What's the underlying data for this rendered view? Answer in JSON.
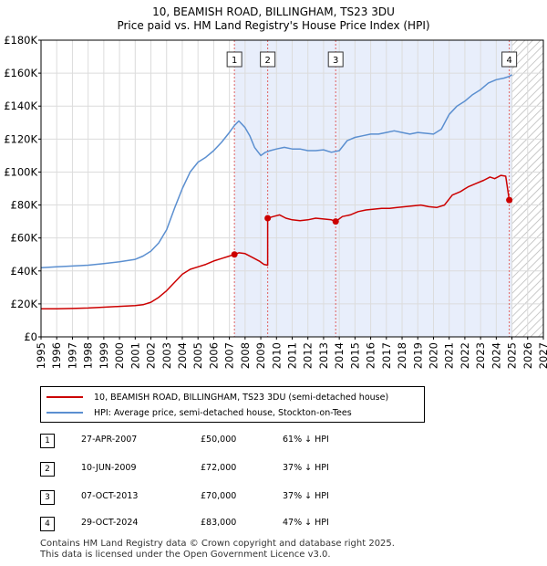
{
  "title_line1": "10, BEAMISH ROAD, BILLINGHAM, TS23 3DU",
  "title_line2": "Price paid vs. HM Land Registry's House Price Index (HPI)",
  "chart_data": {
    "type": "line",
    "title": "Price paid vs. HM Land Registry's House Price Index (HPI)",
    "xlim": [
      1995,
      2027
    ],
    "ylim": [
      0,
      180000
    ],
    "x_ticks": [
      1995,
      1996,
      1997,
      1998,
      1999,
      2000,
      2001,
      2002,
      2003,
      2004,
      2005,
      2006,
      2007,
      2008,
      2009,
      2010,
      2011,
      2012,
      2013,
      2014,
      2015,
      2016,
      2017,
      2018,
      2019,
      2020,
      2021,
      2022,
      2023,
      2024,
      2025,
      2026,
      2027
    ],
    "y_ticks": [
      0,
      20000,
      40000,
      60000,
      80000,
      100000,
      120000,
      140000,
      160000,
      180000
    ],
    "y_tick_labels": [
      "£0",
      "£20K",
      "£40K",
      "£60K",
      "£80K",
      "£100K",
      "£120K",
      "£140K",
      "£160K",
      "£180K"
    ],
    "future_start": 2025.0,
    "series": [
      {
        "name": "10, BEAMISH ROAD, BILLINGHAM, TS23 3DU (semi-detached house)",
        "color": "#cc0000",
        "x": [
          1995.0,
          1996.0,
          1997.0,
          1998.0,
          1999.0,
          2000.0,
          2001.0,
          2001.5,
          2002.0,
          2002.5,
          2003.0,
          2003.5,
          2004.0,
          2004.5,
          2005.0,
          2005.5,
          2006.0,
          2006.5,
          2007.0,
          2007.32,
          2007.6,
          2008.0,
          2008.5,
          2008.9,
          2009.2,
          2009.44,
          2009.44,
          2009.8,
          2010.2,
          2010.6,
          2011.0,
          2011.5,
          2012.0,
          2012.5,
          2013.0,
          2013.5,
          2013.77,
          2014.2,
          2014.7,
          2015.2,
          2015.7,
          2016.2,
          2016.7,
          2017.2,
          2017.7,
          2018.2,
          2018.7,
          2019.2,
          2019.7,
          2020.2,
          2020.7,
          2021.2,
          2021.7,
          2022.2,
          2022.7,
          2023.2,
          2023.6,
          2023.9,
          2024.3,
          2024.6,
          2024.83,
          2025.0
        ],
        "y": [
          17000,
          17000,
          17200,
          17500,
          18000,
          18500,
          19000,
          19500,
          21000,
          24000,
          28000,
          33000,
          38000,
          41000,
          42500,
          44000,
          46000,
          47500,
          49000,
          50000,
          51000,
          50500,
          48000,
          46000,
          44000,
          43500,
          72000,
          73000,
          74000,
          72000,
          71000,
          70500,
          71000,
          72000,
          71500,
          71000,
          70000,
          73000,
          74000,
          76000,
          77000,
          77500,
          78000,
          78000,
          78500,
          79000,
          79500,
          80000,
          79000,
          78500,
          80000,
          86000,
          88000,
          91000,
          93000,
          95000,
          97000,
          96000,
          98000,
          97500,
          83000,
          82000
        ]
      },
      {
        "name": "HPI: Average price, semi-detached house, Stockton-on-Tees",
        "color": "#5b8fd0",
        "x": [
          1995.0,
          1996.0,
          1997.0,
          1998.0,
          1999.0,
          2000.0,
          2001.0,
          2001.5,
          2002.0,
          2002.5,
          2003.0,
          2003.5,
          2004.0,
          2004.5,
          2005.0,
          2005.5,
          2006.0,
          2006.5,
          2007.0,
          2007.3,
          2007.6,
          2008.0,
          2008.3,
          2008.6,
          2009.0,
          2009.3,
          2009.6,
          2010.0,
          2010.5,
          2011.0,
          2011.5,
          2012.0,
          2012.5,
          2013.0,
          2013.5,
          2014.0,
          2014.5,
          2015.0,
          2015.5,
          2016.0,
          2016.5,
          2017.0,
          2017.5,
          2018.0,
          2018.5,
          2019.0,
          2019.5,
          2020.0,
          2020.5,
          2021.0,
          2021.5,
          2022.0,
          2022.5,
          2023.0,
          2023.5,
          2024.0,
          2024.5,
          2024.83,
          2025.0
        ],
        "y": [
          42000,
          42500,
          43000,
          43500,
          44500,
          45500,
          47000,
          49000,
          52000,
          57000,
          65000,
          78000,
          90000,
          100000,
          106000,
          109000,
          113000,
          118000,
          124000,
          128000,
          131000,
          127000,
          122000,
          115000,
          110000,
          112000,
          113000,
          114000,
          115000,
          114000,
          114000,
          113000,
          113000,
          113500,
          112000,
          113000,
          119000,
          121000,
          122000,
          123000,
          123000,
          124000,
          125000,
          124000,
          123000,
          124000,
          123500,
          123000,
          126000,
          135000,
          140000,
          143000,
          147000,
          150000,
          154000,
          156000,
          157000,
          158000,
          159000
        ]
      }
    ],
    "sales": [
      {
        "label": "1",
        "x": 2007.32,
        "y": 50000
      },
      {
        "label": "2",
        "x": 2009.44,
        "y": 72000
      },
      {
        "label": "3",
        "x": 2013.77,
        "y": 70000
      },
      {
        "label": "4",
        "x": 2024.83,
        "y": 83000
      }
    ]
  },
  "legend": {
    "red_label": "10, BEAMISH ROAD, BILLINGHAM, TS23 3DU (semi-detached house)",
    "blue_label": "HPI: Average price, semi-detached house, Stockton-on-Tees",
    "red_color": "#cc0000",
    "blue_color": "#5b8fd0"
  },
  "table": [
    {
      "num": "1",
      "date": "27-APR-2007",
      "price": "£50,000",
      "pct": "61% ↓ HPI"
    },
    {
      "num": "2",
      "date": "10-JUN-2009",
      "price": "£72,000",
      "pct": "37% ↓ HPI"
    },
    {
      "num": "3",
      "date": "07-OCT-2013",
      "price": "£70,000",
      "pct": "37% ↓ HPI"
    },
    {
      "num": "4",
      "date": "29-OCT-2024",
      "price": "£83,000",
      "pct": "47% ↓ HPI"
    }
  ],
  "footer_line1": "Contains HM Land Registry data © Crown copyright and database right 2025.",
  "footer_line2": "This data is licensed under the Open Government Licence v3.0."
}
